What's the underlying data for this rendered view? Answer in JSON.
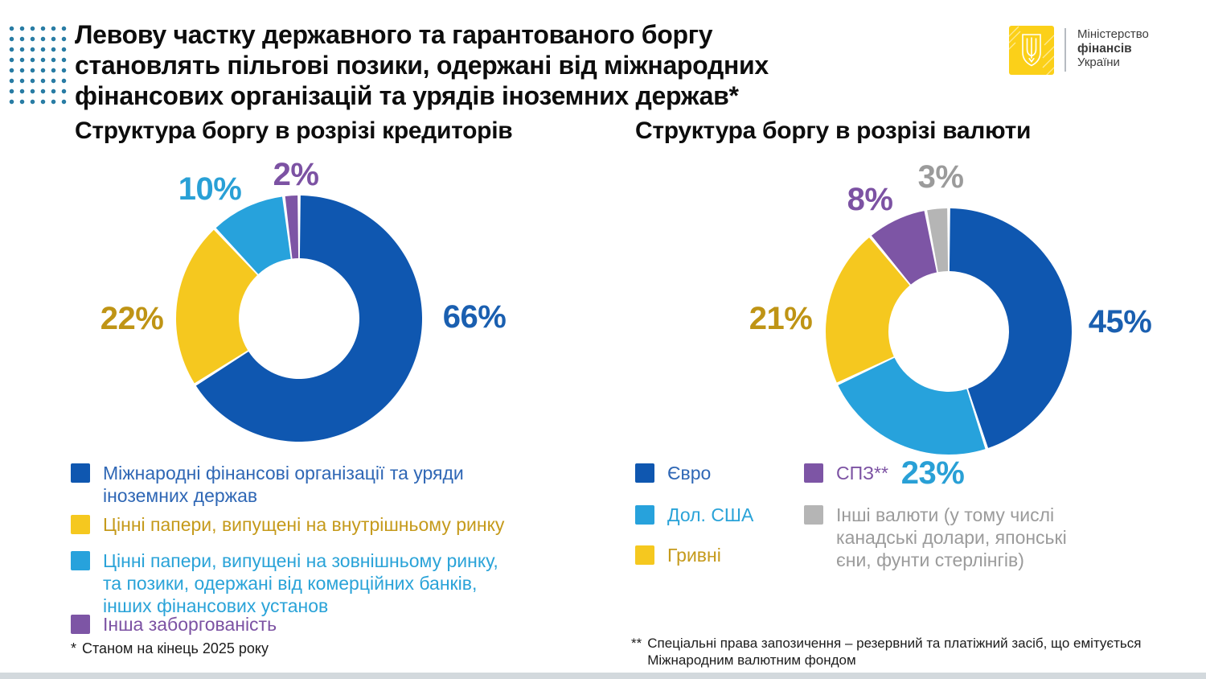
{
  "header": {
    "title": "Левову частку державного та гарантованого боргу\nстановлять пільгові позики, одержані від міжнародних\nфінансових організацій та урядів іноземних держав*"
  },
  "logo": {
    "ministry_line1": "Міністерство",
    "ministry_line2": "фінансів",
    "ministry_line3": "України"
  },
  "palette": {
    "blue": "#0f57b0",
    "light_blue": "#27a2dc",
    "yellow": "#f5c81f",
    "purple": "#7d55a5",
    "gray": "#b5b5b5",
    "dots_teal": "#2a7da5",
    "logo_yellow": "#fbd019"
  },
  "chart_data": [
    {
      "type": "pie",
      "variant": "donut",
      "title": "Структура боргу в розрізі кредиторів",
      "unit": "%",
      "categories": [
        "Міжнародні фінансові організації та уряди\nіноземних держав",
        "Цінні папери, випущені на внутрішньому ринку",
        "Цінні папери, випущені на зовнішньому ринку,\nта позики, одержані від комерційних банків,\nінших фінансових установ",
        "Інша заборгованість"
      ],
      "values": [
        66,
        22,
        10,
        2
      ],
      "colors": [
        "#0f57b0",
        "#f5c81f",
        "#27a2dc",
        "#7d55a5"
      ],
      "percent_labels": [
        "66%",
        "22%",
        "10%",
        "2%"
      ],
      "start_angle_deg": 0,
      "direction": "clockwise",
      "legend_position": "bottom-left"
    },
    {
      "type": "pie",
      "variant": "donut",
      "title": "Структура боргу в розрізі валюти",
      "unit": "%",
      "categories": [
        "Євро",
        "Дол. США",
        "Гривні",
        "СПЗ**",
        "Інші валюти (у тому числі\nканадські долари, японські\nєни, фунти стерлінгів)"
      ],
      "values": [
        45,
        23,
        21,
        8,
        3
      ],
      "colors": [
        "#0f57b0",
        "#27a2dc",
        "#f5c81f",
        "#7d55a5",
        "#b5b5b5"
      ],
      "percent_labels": [
        "45%",
        "23%",
        "21%",
        "8%",
        "3%"
      ],
      "start_angle_deg": 0,
      "direction": "clockwise",
      "legend_position": "bottom-left"
    }
  ],
  "footnotes": {
    "left_marker": "*",
    "left_text": "Станом на кінець 2025 року",
    "right_marker": "**",
    "right_text": "Спеціальні права запозичення – резервний та платіжний засіб, що емітується\nМіжнародним валютним фондом"
  }
}
